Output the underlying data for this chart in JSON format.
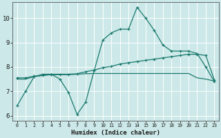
{
  "xlabel": "Humidex (Indice chaleur)",
  "background_color": "#cce8e8",
  "line_color": "#1a7a6e",
  "grid_color": "#ffffff",
  "xlim": [
    -0.5,
    23.5
  ],
  "ylim": [
    5.8,
    10.65
  ],
  "xticks": [
    0,
    1,
    2,
    3,
    4,
    5,
    6,
    7,
    8,
    9,
    10,
    11,
    12,
    13,
    14,
    15,
    16,
    17,
    18,
    19,
    20,
    21,
    22,
    23
  ],
  "yticks": [
    6,
    7,
    8,
    9,
    10
  ],
  "line1_x": [
    0,
    1,
    2,
    3,
    4,
    5,
    6,
    7,
    8,
    9,
    10,
    11,
    12,
    13,
    14,
    15,
    16,
    17,
    18,
    19,
    20,
    21,
    22,
    23
  ],
  "line1_y": [
    6.4,
    7.0,
    7.6,
    7.7,
    7.7,
    7.5,
    6.95,
    6.05,
    6.55,
    7.85,
    9.1,
    9.4,
    9.55,
    9.55,
    10.45,
    10.0,
    9.5,
    8.9,
    8.65,
    8.65,
    8.65,
    8.55,
    8.0,
    7.4
  ],
  "line2_x": [
    0,
    1,
    2,
    3,
    4,
    5,
    6,
    7,
    8,
    9,
    10,
    11,
    12,
    13,
    14,
    15,
    16,
    17,
    18,
    19,
    20,
    21,
    22,
    23
  ],
  "line2_y": [
    7.55,
    7.55,
    7.62,
    7.65,
    7.7,
    7.7,
    7.7,
    7.72,
    7.8,
    7.87,
    7.97,
    8.02,
    8.12,
    8.17,
    8.22,
    8.27,
    8.32,
    8.37,
    8.42,
    8.47,
    8.52,
    8.52,
    8.47,
    7.47
  ],
  "line3_x": [
    0,
    1,
    2,
    3,
    4,
    5,
    6,
    7,
    8,
    9,
    10,
    11,
    12,
    13,
    14,
    15,
    16,
    17,
    18,
    19,
    20,
    21,
    22,
    23
  ],
  "line3_y": [
    7.5,
    7.5,
    7.6,
    7.65,
    7.68,
    7.68,
    7.68,
    7.7,
    7.72,
    7.73,
    7.73,
    7.73,
    7.73,
    7.73,
    7.73,
    7.73,
    7.73,
    7.73,
    7.73,
    7.73,
    7.73,
    7.55,
    7.5,
    7.42
  ]
}
